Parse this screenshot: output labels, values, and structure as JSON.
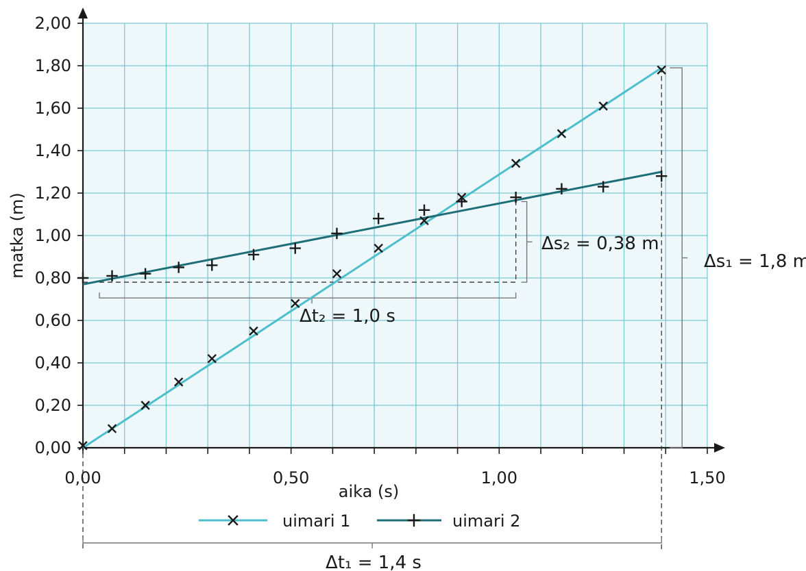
{
  "chart_data": {
    "type": "scatter",
    "xlabel": "aika (s)",
    "ylabel": "matka (m)",
    "xlim": [
      0,
      1.5
    ],
    "ylim": [
      0,
      2.0
    ],
    "x_ticks": [
      "0,00",
      "0,50",
      "1,00",
      "1,50"
    ],
    "y_ticks": [
      "0,00",
      "0,20",
      "0,40",
      "0,60",
      "0,80",
      "1,00",
      "1,20",
      "1,40",
      "1,60",
      "1,80",
      "2,00"
    ],
    "grid": true,
    "legend_position": "bottom",
    "series": [
      {
        "name": "uimari 1",
        "marker": "x",
        "color": "#4cbfcc",
        "points": [
          [
            0.0,
            0.01
          ],
          [
            0.07,
            0.09
          ],
          [
            0.15,
            0.2
          ],
          [
            0.23,
            0.31
          ],
          [
            0.31,
            0.42
          ],
          [
            0.41,
            0.55
          ],
          [
            0.51,
            0.68
          ],
          [
            0.61,
            0.82
          ],
          [
            0.71,
            0.94
          ],
          [
            0.82,
            1.07
          ],
          [
            0.91,
            1.18
          ],
          [
            1.04,
            1.34
          ],
          [
            1.15,
            1.48
          ],
          [
            1.25,
            1.61
          ],
          [
            1.39,
            1.78
          ]
        ],
        "fit_line": [
          [
            0.0,
            0.0
          ],
          [
            1.39,
            1.79
          ]
        ]
      },
      {
        "name": "uimari 2",
        "marker": "+",
        "color": "#1e6e78",
        "points": [
          [
            0.0,
            0.8
          ],
          [
            0.07,
            0.81
          ],
          [
            0.15,
            0.82
          ],
          [
            0.23,
            0.85
          ],
          [
            0.31,
            0.86
          ],
          [
            0.41,
            0.91
          ],
          [
            0.51,
            0.94
          ],
          [
            0.61,
            1.01
          ],
          [
            0.71,
            1.08
          ],
          [
            0.82,
            1.12
          ],
          [
            0.91,
            1.16
          ],
          [
            1.04,
            1.18
          ],
          [
            1.15,
            1.22
          ],
          [
            1.25,
            1.23
          ],
          [
            1.39,
            1.28
          ]
        ],
        "fit_line": [
          [
            0.0,
            0.77
          ],
          [
            1.39,
            1.3
          ]
        ]
      }
    ],
    "annotations": {
      "ds2": "Δs₂ = 0,38 m",
      "dt2": "Δt₂ = 1,0 s",
      "ds1": "Δs₁ = 1,8 m",
      "dt1": "Δt₁ = 1,4 s"
    }
  }
}
